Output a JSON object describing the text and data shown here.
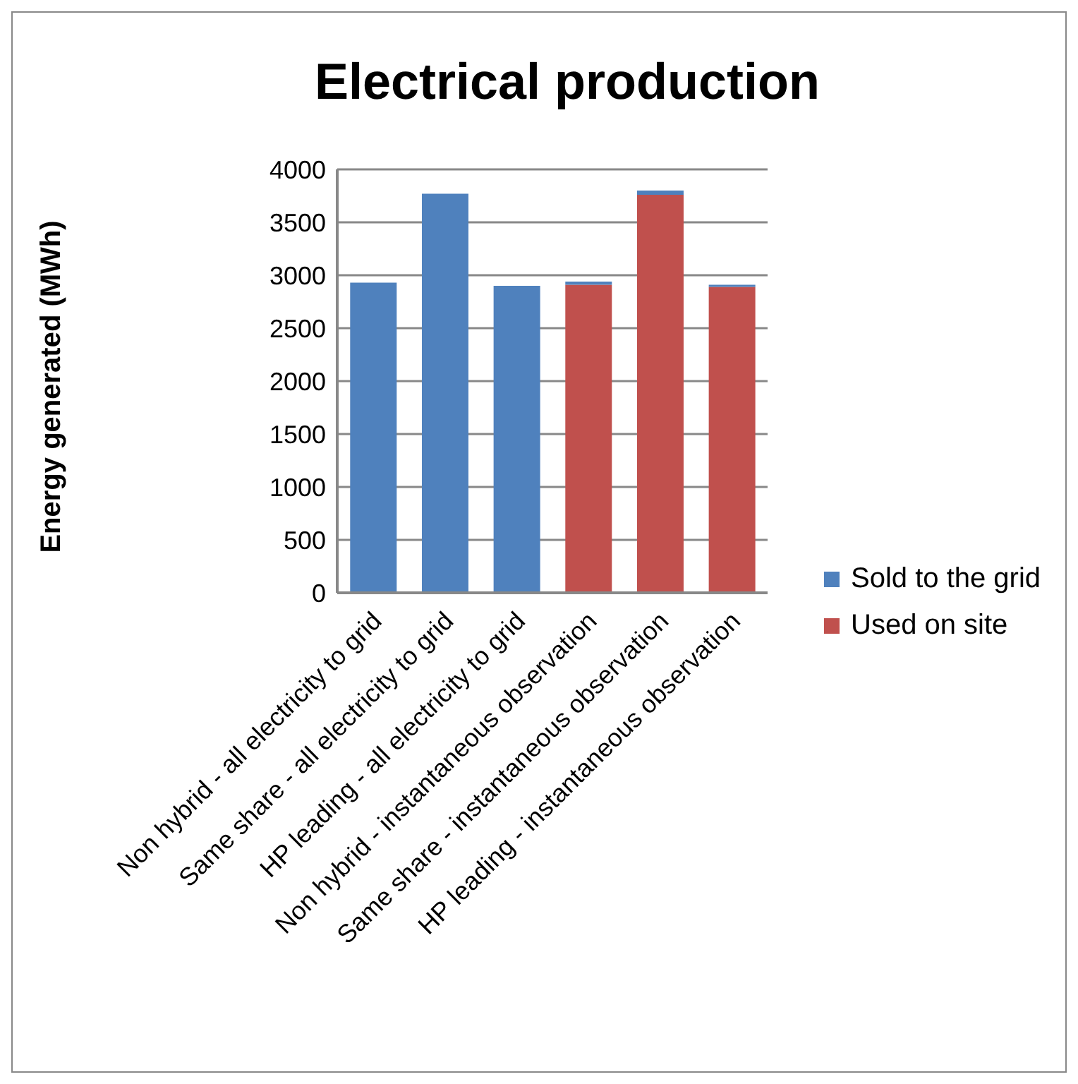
{
  "chart_data": {
    "type": "bar",
    "title": "Electrical production",
    "ylabel": "Energy generated (MWh)",
    "categories": [
      "Non hybrid - all electricity to grid",
      "Same share - all electricity to grid",
      "HP leading - all electricity to grid",
      "Non hybrid - instantaneous observation",
      "Same share - instantaneous observation",
      "HP leading - instantaneous observation"
    ],
    "stacked": true,
    "series": [
      {
        "name": "Used on site",
        "color": "#c0504d",
        "values": [
          0,
          0,
          0,
          2910,
          3760,
          2890
        ]
      },
      {
        "name": "Sold to the grid",
        "color": "#4f81bd",
        "values": [
          2930,
          3770,
          2900,
          30,
          40,
          20
        ]
      }
    ],
    "ylim": [
      0,
      4000
    ],
    "yticks": [
      0,
      500,
      1000,
      1500,
      2000,
      2500,
      3000,
      3500,
      4000
    ],
    "grid": "y",
    "legend": "right"
  }
}
